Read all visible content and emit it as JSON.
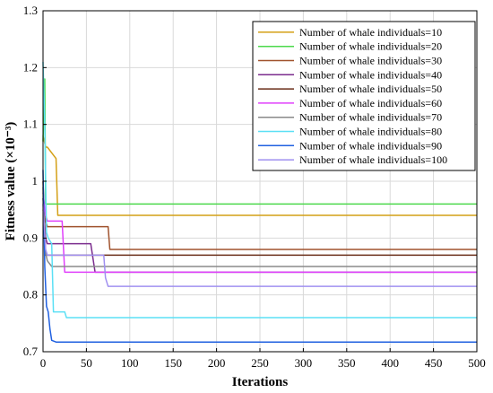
{
  "chart_data": {
    "type": "line",
    "title": "",
    "xlabel": "Iterations",
    "ylabel": "Fitness value (×10⁻³)",
    "xlim": [
      0,
      500
    ],
    "ylim": [
      0.7,
      1.3
    ],
    "xticks": [
      0,
      50,
      100,
      150,
      200,
      250,
      300,
      350,
      400,
      450,
      500
    ],
    "yticks": [
      0.7,
      0.8,
      0.9,
      1.0,
      1.1,
      1.2,
      1.3
    ],
    "ytick_labels": [
      "0.7",
      "0.8",
      "0.9",
      "1",
      "1.1",
      "1.2",
      "1.3"
    ],
    "grid": true,
    "legend_position": "top-right",
    "series": [
      {
        "name": "Number of whale individuals=10",
        "color": "#D4A017",
        "x": [
          0,
          3,
          5,
          15,
          17,
          20,
          500
        ],
        "y": [
          1.08,
          1.06,
          1.06,
          1.04,
          0.94,
          0.94,
          0.94
        ]
      },
      {
        "name": "Number of whale individuals=20",
        "color": "#4CD94C",
        "x": [
          0,
          2,
          3,
          5,
          500
        ],
        "y": [
          1.07,
          1.18,
          0.96,
          0.96,
          0.96
        ]
      },
      {
        "name": "Number of whale individuals=30",
        "color": "#A0522D",
        "x": [
          0,
          3,
          5,
          75,
          77,
          500
        ],
        "y": [
          0.95,
          0.93,
          0.92,
          0.92,
          0.88,
          0.88
        ]
      },
      {
        "name": "Number of whale individuals=40",
        "color": "#7B2D8E",
        "x": [
          0,
          3,
          5,
          55,
          60,
          500
        ],
        "y": [
          0.97,
          0.9,
          0.89,
          0.89,
          0.84,
          0.84
        ]
      },
      {
        "name": "Number of whale individuals=50",
        "color": "#6B2F1A",
        "x": [
          0,
          3,
          5,
          500
        ],
        "y": [
          1.0,
          0.87,
          0.87,
          0.87
        ]
      },
      {
        "name": "Number of whale individuals=60",
        "color": "#E040FB",
        "x": [
          0,
          3,
          5,
          22,
          25,
          500
        ],
        "y": [
          0.98,
          0.94,
          0.93,
          0.93,
          0.84,
          0.84
        ]
      },
      {
        "name": "Number of whale individuals=70",
        "color": "#8A8A8A",
        "x": [
          0,
          2,
          5,
          10,
          500
        ],
        "y": [
          0.99,
          0.88,
          0.86,
          0.85,
          0.85
        ]
      },
      {
        "name": "Number of whale individuals=80",
        "color": "#5BE0F5",
        "x": [
          0,
          2,
          4,
          6,
          10,
          12,
          25,
          27,
          500
        ],
        "y": [
          1.21,
          1.1,
          0.91,
          0.9,
          0.89,
          0.77,
          0.77,
          0.76,
          0.76
        ]
      },
      {
        "name": "Number of whale individuals=90",
        "color": "#2060E0",
        "x": [
          0,
          2,
          4,
          6,
          8,
          10,
          15,
          500
        ],
        "y": [
          1.02,
          0.85,
          0.78,
          0.77,
          0.74,
          0.72,
          0.717,
          0.717
        ]
      },
      {
        "name": "Number of whale individuals=100",
        "color": "#A090F0",
        "x": [
          0,
          3,
          5,
          70,
          72,
          75,
          500
        ],
        "y": [
          0.96,
          0.88,
          0.87,
          0.87,
          0.83,
          0.815,
          0.815
        ]
      }
    ]
  }
}
